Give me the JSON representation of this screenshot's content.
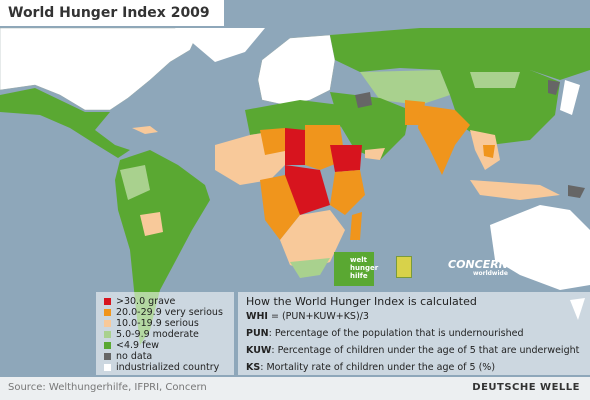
{
  "header": {
    "title": "World Hunger Index 2009"
  },
  "legend": [
    {
      "label": ">30.0 grave",
      "color": "#d7141e"
    },
    {
      "label": "20.0-29.9 very serious",
      "color": "#f0951c"
    },
    {
      "label": "10.0-19.9 serious",
      "color": "#f8c99a"
    },
    {
      "label": "5.0-9.9 moderate",
      "color": "#a9d18e"
    },
    {
      "label": "<4.9 few",
      "color": "#5aa832"
    },
    {
      "label": "no data",
      "color": "#666666"
    },
    {
      "label": "industrialized country",
      "color": "#ffffff"
    }
  ],
  "formula": {
    "title": "How the World Hunger Index is calculated",
    "lines": [
      {
        "term": "WHI",
        "text": " = (PUN+KUW+KS)/3"
      },
      {
        "term": "PUN",
        "text": ": Percentage of the population that is undernourished"
      },
      {
        "term": "KUW",
        "text": ": Percentage of children under the age of 5 that are underweight"
      },
      {
        "term": "KS",
        "text": ": Mortality rate of children under the age of 5 (%)"
      }
    ]
  },
  "logos": [
    "welt hunger hilfe",
    {
      "name": "CONCERN",
      "sub": "worldwide"
    }
  ],
  "footer": {
    "source": "Source: Welthungerhilfe, IFPRI, Concern",
    "brand": "DEUTSCHE WELLE"
  }
}
